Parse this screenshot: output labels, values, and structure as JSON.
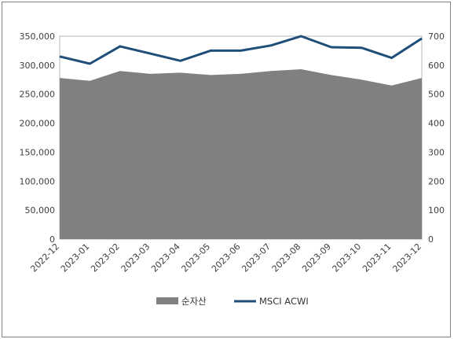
{
  "chart_data": {
    "type": "area",
    "title": "",
    "xlabel": "",
    "ylabel": "",
    "x": [
      "2022-12",
      "2023-01",
      "2023-02",
      "2023-03",
      "2023-04",
      "2023-05",
      "2023-06",
      "2023-07",
      "2023-08",
      "2023-09",
      "2023-10",
      "2023-11",
      "2023-12"
    ],
    "ylim_left": [
      0,
      350000
    ],
    "yticks_left": [
      "0",
      "50,000",
      "100,000",
      "150,000",
      "200,000",
      "250,000",
      "300,000",
      "350,000"
    ],
    "ylim_right": [
      0,
      700
    ],
    "yticks_right": [
      "0",
      "100",
      "200",
      "300",
      "400",
      "500",
      "600",
      "700"
    ],
    "legend_position": "bottom",
    "grid": false,
    "series": [
      {
        "name": "순자산",
        "type": "area",
        "axis": "left",
        "color": "#808080",
        "values": [
          278000,
          273000,
          290000,
          285000,
          287000,
          283000,
          285000,
          290000,
          293000,
          283000,
          275000,
          265000,
          278000
        ]
      },
      {
        "name": "MSCI ACWI",
        "type": "line",
        "axis": "right",
        "color": "#1f4e79",
        "values": [
          630,
          605,
          665,
          640,
          615,
          650,
          650,
          668,
          700,
          662,
          660,
          625,
          692
        ]
      }
    ]
  }
}
